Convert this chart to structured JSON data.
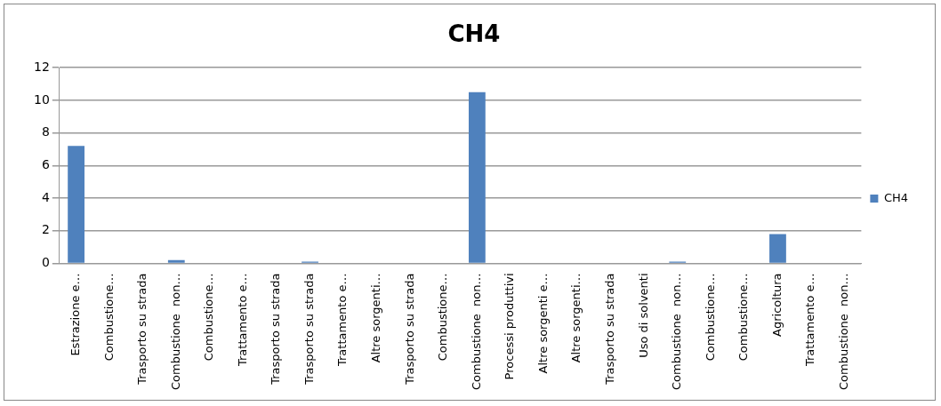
{
  "chart_data": {
    "type": "bar",
    "title": "CH4",
    "categories": [
      "Estrazione e…",
      "Combustione…",
      "Trasporto su strada",
      "Combustione  non…",
      "Combustione…",
      "Trattamento e…",
      "Trasporto su strada",
      "Trasporto su strada",
      "Trattamento e…",
      "Altre sorgenti…",
      "Trasporto su strada",
      "Combustione…",
      "Combustione  non…",
      "Processi produttivi",
      "Altre sorgenti e…",
      "Altre sorgenti…",
      "Trasporto su strada",
      "Uso di solventi",
      "Combustione  non…",
      "Combustione…",
      "Combustione…",
      "Agricoltura",
      "Trattamento e…",
      "Combustione  non…"
    ],
    "series": [
      {
        "name": "CH4",
        "color": "#4f81bd",
        "values": [
          7.2,
          0,
          0,
          0.2,
          0,
          0,
          0,
          0.1,
          0,
          0,
          0,
          0,
          10.5,
          0,
          0,
          0,
          0,
          0,
          0.1,
          0,
          0,
          1.8,
          0,
          0
        ]
      }
    ],
    "ylim": [
      0,
      12
    ],
    "yticks": [
      0,
      2,
      4,
      6,
      8,
      10,
      12
    ],
    "grid": "y",
    "legend": "right"
  }
}
